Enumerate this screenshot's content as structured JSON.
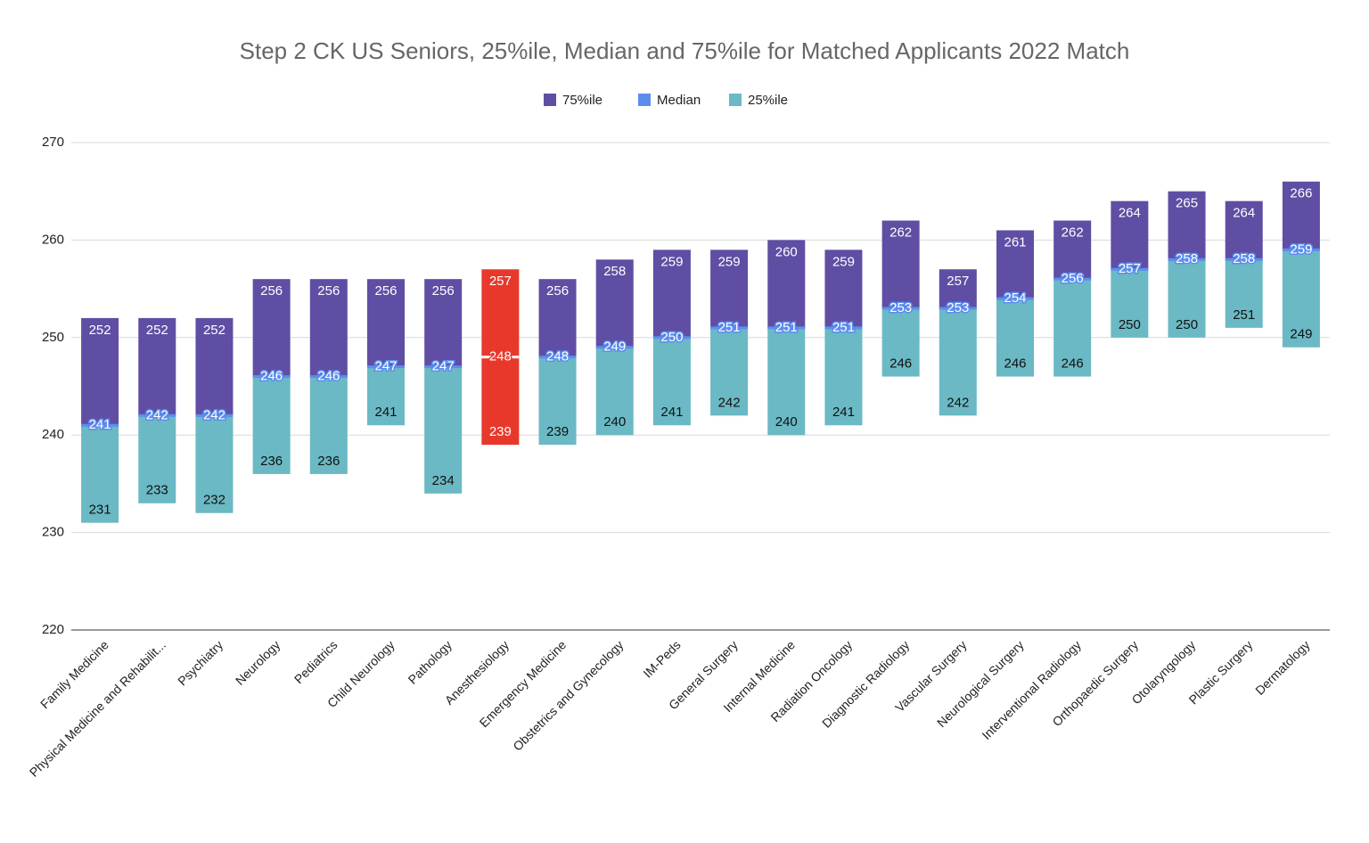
{
  "chart_data": {
    "type": "floating-bar",
    "title": "Step 2 CK US Seniors, 25%ile, Median and 75%ile for Matched Applicants 2022 Match",
    "categories": [
      "Family Medicine",
      "Physical Medicine and Rehabilit...",
      "Psychiatry",
      "Neurology",
      "Pediatrics",
      "Child Neurology",
      "Pathology",
      "Anesthesiology",
      "Emergency Medicine",
      "Obstetrics and Gynecology",
      "IM-Peds",
      "General Surgery",
      "Internal Medicine",
      "Radiation Oncology",
      "Diagnostic Radiology",
      "Vascular Surgery",
      "Neurological Surgery",
      "Interventional Radiology",
      "Orthopaedic Surgery",
      "Otolaryngology",
      "Plastic Surgery",
      "Dermatology"
    ],
    "series": [
      {
        "name": "75%ile",
        "color": "#5f4ea3",
        "values": [
          252,
          252,
          252,
          256,
          256,
          256,
          256,
          257,
          256,
          258,
          259,
          259,
          260,
          259,
          262,
          257,
          261,
          262,
          264,
          265,
          264,
          266
        ]
      },
      {
        "name": "Median",
        "color": "#5b8def",
        "values": [
          241,
          242,
          242,
          246,
          246,
          247,
          247,
          248,
          248,
          249,
          250,
          251,
          251,
          251,
          253,
          253,
          254,
          256,
          257,
          258,
          258,
          259
        ]
      },
      {
        "name": "25%ile",
        "color": "#6ab9c4",
        "values": [
          231,
          233,
          232,
          236,
          236,
          241,
          234,
          239,
          239,
          240,
          241,
          242,
          240,
          241,
          246,
          242,
          246,
          246,
          250,
          250,
          251,
          249
        ]
      }
    ],
    "highlight": {
      "category": "Anesthesiology",
      "color": "#e8382c"
    },
    "ylim": [
      220,
      270
    ],
    "yticks": [
      220,
      230,
      240,
      250,
      260,
      270
    ],
    "grid": true,
    "legend": "top"
  }
}
